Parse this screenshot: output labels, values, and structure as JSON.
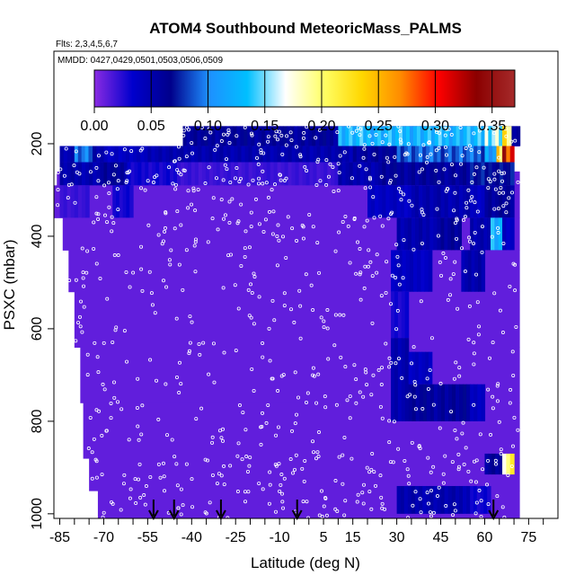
{
  "chart_data": {
    "type": "heatmap",
    "title": "ATOM4 Southbound MeteoricMass_PALMS",
    "subtitle_flights": "Flts: 2,3,4,5,6,7",
    "subtitle_dates": "MMDD: 0427,0429,0501,0503,0506,0509",
    "xlabel": "Latitude (deg N)",
    "ylabel": "PSXC (mbar)",
    "xlim": [
      -87,
      85
    ],
    "ylim": [
      1010,
      0
    ],
    "x_ticks": [
      -85,
      -70,
      -55,
      -40,
      -25,
      -10,
      5,
      15,
      30,
      45,
      60,
      75
    ],
    "x_tick_labels": [
      "-85",
      "-70",
      "-55",
      "-40",
      "-25",
      "-10",
      "5",
      "15",
      "30",
      "45",
      "60",
      "75"
    ],
    "y_ticks": [
      200,
      400,
      600,
      800,
      1000
    ],
    "y_tick_labels": [
      "200",
      "400",
      "600",
      "800",
      "1000"
    ],
    "colorbar": {
      "range": [
        0,
        0.37
      ],
      "ticks": [
        0.0,
        0.05,
        0.1,
        0.15,
        0.2,
        0.25,
        0.3,
        0.35
      ],
      "tick_labels": [
        "0.00",
        "0.05",
        "0.10",
        "0.15",
        "0.20",
        "0.25",
        "0.30",
        "0.35"
      ],
      "colors": [
        "#8a2be2",
        "#0000cd",
        "#00008b",
        "#1e90ff",
        "#00bfff",
        "#ffffff",
        "#ffff66",
        "#ffd700",
        "#ff8c00",
        "#ff0000",
        "#8b0000",
        "#a52a2a"
      ]
    },
    "background_value": 0.01,
    "cells": [
      {
        "x": [
          -43,
          72
        ],
        "p": [
          162,
          205
        ],
        "v": 0.06
      },
      {
        "x": [
          10,
          60
        ],
        "p": [
          162,
          205
        ],
        "v": 0.13
      },
      {
        "x": [
          60,
          66
        ],
        "p": [
          162,
          205
        ],
        "v": 0.16
      },
      {
        "x": [
          66,
          69
        ],
        "p": [
          162,
          205
        ],
        "v": 0.22
      },
      {
        "x": [
          -85,
          -70
        ],
        "p": [
          205,
          240
        ],
        "v": 0.05
      },
      {
        "x": [
          -80,
          -74
        ],
        "p": [
          205,
          240
        ],
        "v": 0.1
      },
      {
        "x": [
          -70,
          -55
        ],
        "p": [
          205,
          240
        ],
        "v": 0.04
      },
      {
        "x": [
          -55,
          15
        ],
        "p": [
          205,
          240
        ],
        "v": 0.05
      },
      {
        "x": [
          15,
          30
        ],
        "p": [
          205,
          240
        ],
        "v": 0.06
      },
      {
        "x": [
          30,
          60
        ],
        "p": [
          205,
          240
        ],
        "v": 0.09
      },
      {
        "x": [
          60,
          64
        ],
        "p": [
          205,
          240
        ],
        "v": 0.12
      },
      {
        "x": [
          64,
          66
        ],
        "p": [
          205,
          240
        ],
        "v": 0.24
      },
      {
        "x": [
          66,
          70
        ],
        "p": [
          205,
          240
        ],
        "v": 0.33
      },
      {
        "x": [
          -85,
          -70
        ],
        "p": [
          240,
          290
        ],
        "v": 0.05
      },
      {
        "x": [
          -70,
          -62
        ],
        "p": [
          240,
          290
        ],
        "v": 0.06
      },
      {
        "x": [
          -62,
          -45
        ],
        "p": [
          240,
          290
        ],
        "v": 0.03
      },
      {
        "x": [
          -45,
          10
        ],
        "p": [
          240,
          290
        ],
        "v": 0.02
      },
      {
        "x": [
          10,
          25
        ],
        "p": [
          240,
          290
        ],
        "v": 0.05
      },
      {
        "x": [
          25,
          55
        ],
        "p": [
          240,
          290
        ],
        "v": 0.06
      },
      {
        "x": [
          55,
          70
        ],
        "p": [
          240,
          290
        ],
        "v": 0.07
      },
      {
        "x": [
          -85,
          -75
        ],
        "p": [
          290,
          360
        ],
        "v": 0.02
      },
      {
        "x": [
          -67,
          -60
        ],
        "p": [
          290,
          360
        ],
        "v": 0.03
      },
      {
        "x": [
          20,
          35
        ],
        "p": [
          290,
          360
        ],
        "v": 0.04
      },
      {
        "x": [
          35,
          55
        ],
        "p": [
          290,
          360
        ],
        "v": 0.05
      },
      {
        "x": [
          55,
          60
        ],
        "p": [
          290,
          360
        ],
        "v": 0.04
      },
      {
        "x": [
          60,
          66
        ],
        "p": [
          290,
          360
        ],
        "v": 0.06
      },
      {
        "x": [
          66,
          70
        ],
        "p": [
          290,
          360
        ],
        "v": 0.06
      },
      {
        "x": [
          30,
          45
        ],
        "p": [
          360,
          430
        ],
        "v": 0.05
      },
      {
        "x": [
          45,
          52
        ],
        "p": [
          360,
          430
        ],
        "v": 0.06
      },
      {
        "x": [
          55,
          62
        ],
        "p": [
          360,
          430
        ],
        "v": 0.05
      },
      {
        "x": [
          62,
          66
        ],
        "p": [
          360,
          430
        ],
        "v": 0.13
      },
      {
        "x": [
          66,
          70
        ],
        "p": [
          360,
          430
        ],
        "v": 0.04
      },
      {
        "x": [
          28,
          42
        ],
        "p": [
          430,
          520
        ],
        "v": 0.04
      },
      {
        "x": [
          52,
          60
        ],
        "p": [
          430,
          520
        ],
        "v": 0.05
      },
      {
        "x": [
          28,
          34
        ],
        "p": [
          520,
          620
        ],
        "v": 0.03
      },
      {
        "x": [
          28,
          34
        ],
        "p": [
          620,
          800
        ],
        "v": 0.05
      },
      {
        "x": [
          34,
          42
        ],
        "p": [
          650,
          720
        ],
        "v": 0.04
      },
      {
        "x": [
          34,
          55
        ],
        "p": [
          720,
          800
        ],
        "v": 0.06
      },
      {
        "x": [
          55,
          60
        ],
        "p": [
          720,
          800
        ],
        "v": 0.04
      },
      {
        "x": [
          60,
          66
        ],
        "p": [
          870,
          915
        ],
        "v": 0.06
      },
      {
        "x": [
          66,
          70
        ],
        "p": [
          870,
          915
        ],
        "v": 0.2
      },
      {
        "x": [
          30,
          55
        ],
        "p": [
          940,
          1000
        ],
        "v": 0.05
      },
      {
        "x": [
          55,
          62
        ],
        "p": [
          940,
          1000
        ],
        "v": 0.03
      }
    ],
    "coverage": [
      {
        "x": [
          -43,
          72
        ],
        "p": [
          162,
          205
        ]
      },
      {
        "x": [
          -85,
          70
        ],
        "p": [
          205,
          260
        ]
      },
      {
        "x": [
          -86,
          72
        ],
        "p": [
          260,
          290
        ]
      },
      {
        "x": [
          -87,
          72
        ],
        "p": [
          290,
          360
        ]
      },
      {
        "x": [
          -84,
          72
        ],
        "p": [
          360,
          430
        ]
      },
      {
        "x": [
          -82,
          72
        ],
        "p": [
          430,
          520
        ]
      },
      {
        "x": [
          -80,
          72
        ],
        "p": [
          520,
          640
        ]
      },
      {
        "x": [
          -78,
          72
        ],
        "p": [
          640,
          760
        ]
      },
      {
        "x": [
          -77,
          72
        ],
        "p": [
          760,
          880
        ]
      },
      {
        "x": [
          -75,
          72
        ],
        "p": [
          880,
          950
        ]
      },
      {
        "x": [
          -72,
          72
        ],
        "p": [
          950,
          1010
        ]
      }
    ],
    "flight_arrows_lat": [
      -53,
      -46,
      -30,
      -4,
      63
    ]
  }
}
